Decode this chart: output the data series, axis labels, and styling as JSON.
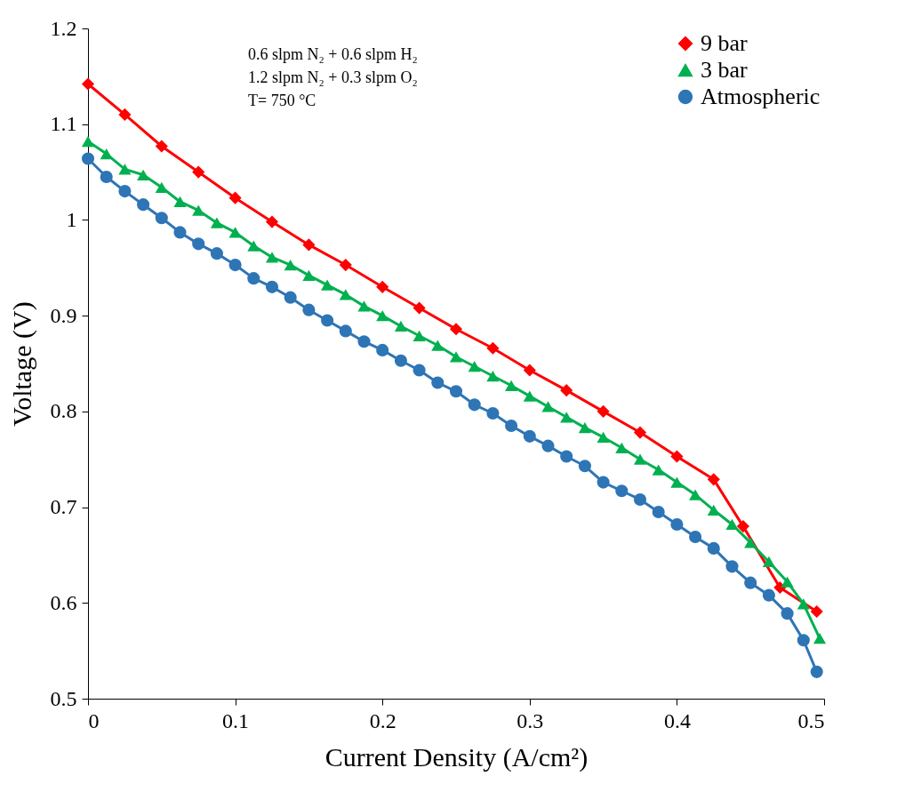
{
  "chart_data": {
    "type": "line",
    "xlabel": "Current Density (A/cm²)",
    "ylabel": "Voltage (V)",
    "annotations": [
      "0.6 slpm N₂ + 0.6 slpm H₂",
      "1.2 slpm N₂ + 0.3 slpm O₂",
      "T= 750 °C"
    ],
    "xlim": [
      0,
      0.5
    ],
    "xticks": [
      0,
      0.1,
      0.2,
      0.3,
      0.4,
      0.5
    ],
    "ylim": [
      0.5,
      1.2
    ],
    "yticks": [
      0.5,
      0.6,
      0.7,
      0.8,
      0.9,
      1,
      1.1,
      1.2
    ],
    "grid": false,
    "legend": "top right",
    "line_style": "solid",
    "series": [
      {
        "name": "9 bar",
        "color": "#ff0000",
        "marker": "diamond",
        "x": [
          0,
          0.025,
          0.05,
          0.075,
          0.1,
          0.125,
          0.15,
          0.175,
          0.2,
          0.225,
          0.25,
          0.275,
          0.3,
          0.325,
          0.35,
          0.375,
          0.4,
          0.425,
          0.445,
          0.47,
          0.495
        ],
        "values": [
          1.142,
          1.11,
          1.077,
          1.05,
          1.023,
          0.998,
          0.974,
          0.953,
          0.93,
          0.908,
          0.886,
          0.866,
          0.843,
          0.822,
          0.8,
          0.778,
          0.753,
          0.729,
          0.68,
          0.616,
          0.591
        ]
      },
      {
        "name": "3 bar",
        "color": "#00b050",
        "marker": "triangle",
        "x": [
          0,
          0.0125,
          0.025,
          0.0375,
          0.05,
          0.0625,
          0.075,
          0.0875,
          0.1,
          0.1125,
          0.125,
          0.1375,
          0.15,
          0.1625,
          0.175,
          0.1875,
          0.2,
          0.2125,
          0.225,
          0.2375,
          0.25,
          0.2625,
          0.275,
          0.2875,
          0.3,
          0.3125,
          0.325,
          0.3375,
          0.35,
          0.3625,
          0.375,
          0.3875,
          0.4,
          0.4125,
          0.425,
          0.4375,
          0.45,
          0.4625,
          0.475,
          0.486,
          0.497
        ],
        "values": [
          1.082,
          1.069,
          1.053,
          1.047,
          1.034,
          1.019,
          1.01,
          0.997,
          0.987,
          0.973,
          0.961,
          0.953,
          0.942,
          0.932,
          0.922,
          0.91,
          0.9,
          0.889,
          0.879,
          0.869,
          0.857,
          0.847,
          0.837,
          0.827,
          0.816,
          0.805,
          0.794,
          0.783,
          0.773,
          0.762,
          0.75,
          0.739,
          0.726,
          0.713,
          0.697,
          0.682,
          0.663,
          0.643,
          0.622,
          0.599,
          0.563
        ]
      },
      {
        "name": "Atmospheric",
        "color": "#2e75b6",
        "marker": "circle",
        "x": [
          0,
          0.0125,
          0.025,
          0.0375,
          0.05,
          0.0625,
          0.075,
          0.0875,
          0.1,
          0.1125,
          0.125,
          0.1375,
          0.15,
          0.1625,
          0.175,
          0.1875,
          0.2,
          0.2125,
          0.225,
          0.2375,
          0.25,
          0.2625,
          0.275,
          0.2875,
          0.3,
          0.3125,
          0.325,
          0.3375,
          0.35,
          0.3625,
          0.375,
          0.3875,
          0.4,
          0.4125,
          0.425,
          0.4375,
          0.45,
          0.4625,
          0.475,
          0.486,
          0.495
        ],
        "values": [
          1.064,
          1.045,
          1.03,
          1.016,
          1.002,
          0.987,
          0.975,
          0.965,
          0.953,
          0.939,
          0.93,
          0.919,
          0.906,
          0.895,
          0.884,
          0.873,
          0.864,
          0.853,
          0.843,
          0.83,
          0.821,
          0.807,
          0.798,
          0.785,
          0.774,
          0.764,
          0.753,
          0.743,
          0.726,
          0.717,
          0.708,
          0.695,
          0.682,
          0.669,
          0.657,
          0.638,
          0.621,
          0.608,
          0.589,
          0.561,
          0.528
        ]
      }
    ]
  }
}
